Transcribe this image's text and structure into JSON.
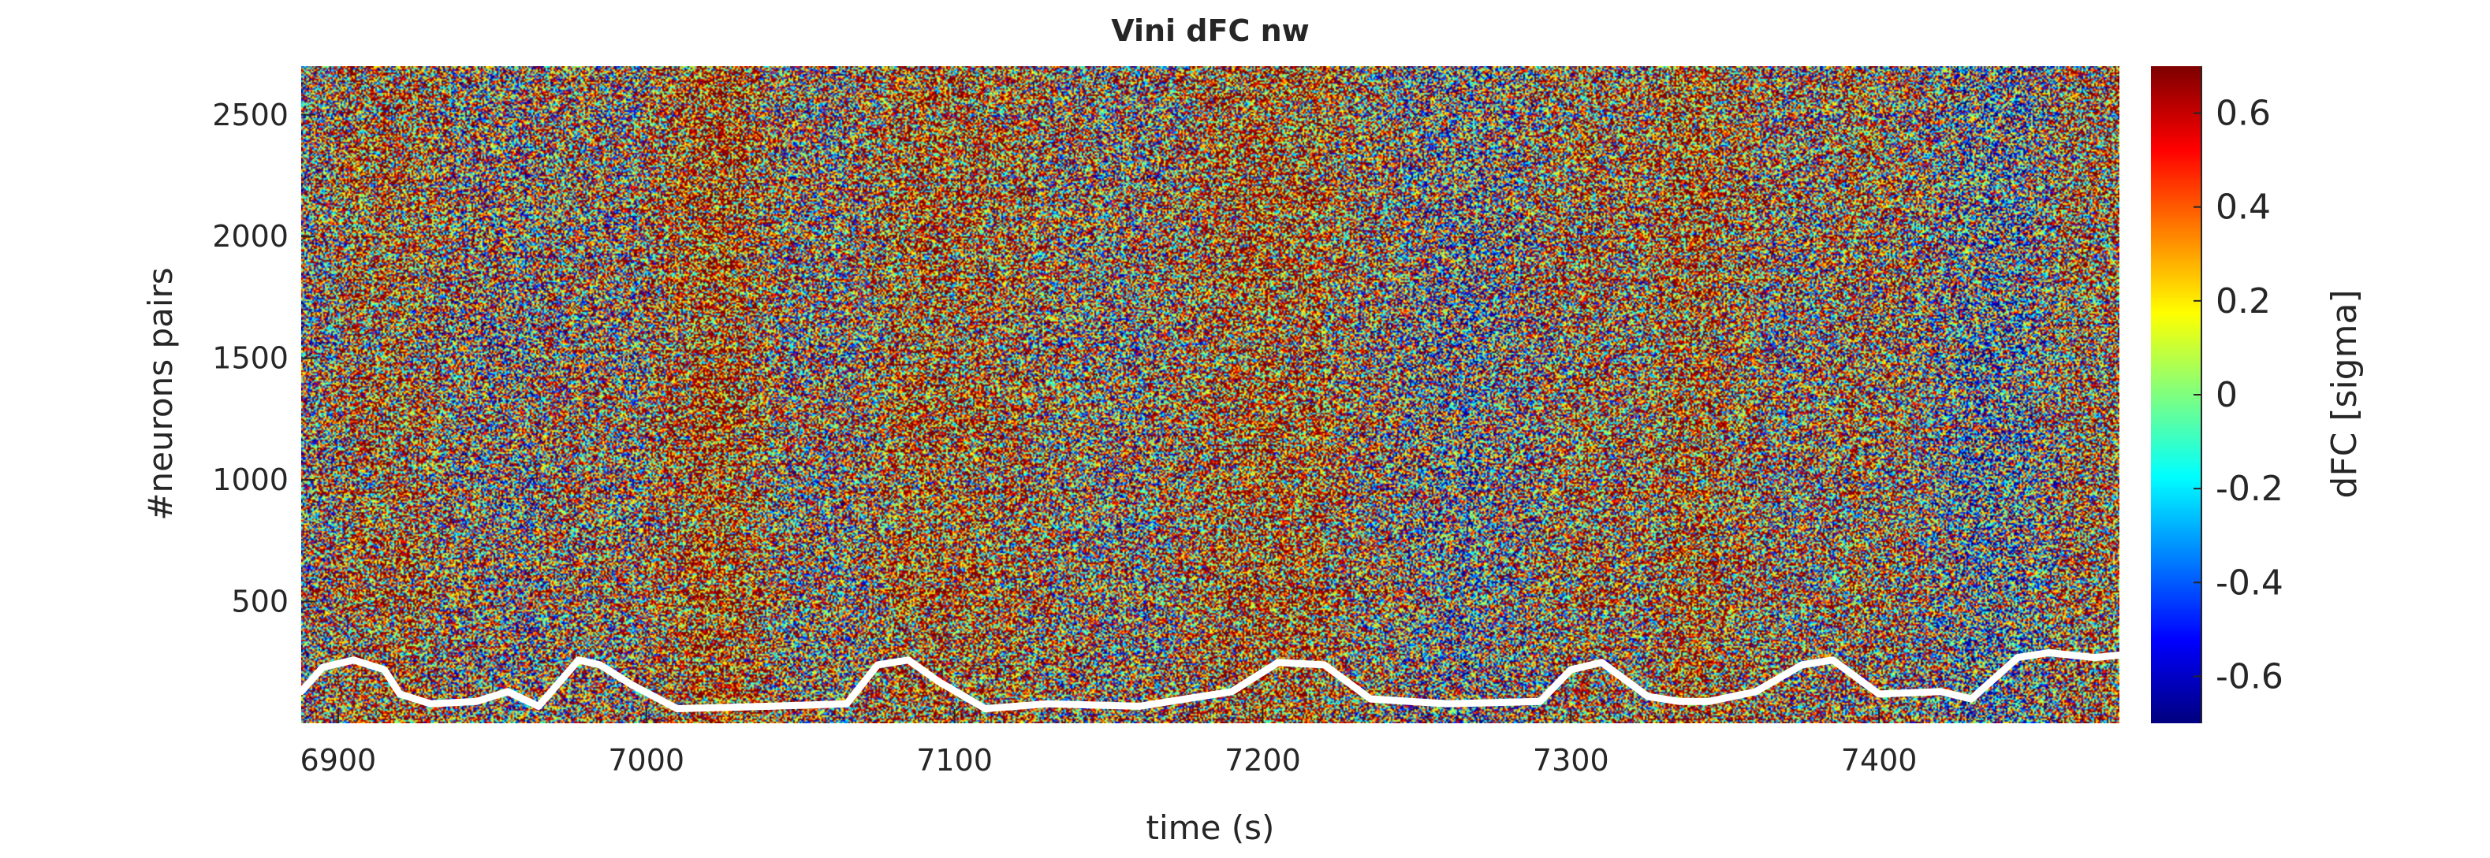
{
  "chart_data": {
    "type": "heatmap",
    "title": "Vini dFC nw",
    "xlabel": "time (s)",
    "ylabel": "#neurons pairs",
    "xlim": [
      6888,
      7478
    ],
    "ylim": [
      0,
      2700
    ],
    "x_ticks": [
      6900,
      7000,
      7100,
      7200,
      7300,
      7400
    ],
    "y_ticks": [
      500,
      1000,
      1500,
      2000,
      2500
    ],
    "grid": false,
    "colorbar": {
      "label": "dFC [sigma]",
      "colormap": "jet",
      "clim": [
        -0.7,
        0.7
      ],
      "ticks": [
        -0.6,
        -0.4,
        -0.2,
        0,
        0.2,
        0.4,
        0.6
      ],
      "tick_labels": [
        "-0.6",
        "-0.4",
        "-0.2",
        "0",
        "0.2",
        "0.4",
        "0.6"
      ]
    },
    "column_mean_profile": [
      0.05,
      0.3,
      0.35,
      0.1,
      0.0,
      0.2,
      0.1,
      0.4,
      0.5,
      0.2,
      0.1,
      0.3,
      0.45,
      0.35,
      0.2,
      0.1,
      0.2,
      0.35,
      0.45,
      0.4,
      0.2,
      0.0,
      -0.1,
      0.1,
      0.3,
      0.2,
      0.45,
      0.3,
      0.1,
      0.25,
      0.15,
      -0.1,
      -0.2,
      0.2,
      0.3
    ],
    "overlay_trace": {
      "color": "#ffffff",
      "description_values_unit": "#neurons pairs axis units",
      "x": [
        6888,
        6895,
        6905,
        6915,
        6920,
        6930,
        6945,
        6955,
        6965,
        6978,
        6985,
        6995,
        7010,
        7040,
        7065,
        7075,
        7085,
        7095,
        7110,
        7130,
        7160,
        7190,
        7205,
        7220,
        7235,
        7260,
        7290,
        7300,
        7310,
        7325,
        7335,
        7345,
        7360,
        7375,
        7385,
        7400,
        7420,
        7430,
        7445,
        7455,
        7470,
        7478
      ],
      "y": [
        130,
        230,
        260,
        220,
        120,
        80,
        90,
        130,
        70,
        260,
        240,
        160,
        60,
        70,
        80,
        240,
        260,
        170,
        60,
        80,
        70,
        130,
        250,
        240,
        100,
        80,
        90,
        220,
        250,
        110,
        90,
        90,
        130,
        240,
        260,
        120,
        130,
        100,
        270,
        290,
        270,
        280
      ]
    }
  }
}
